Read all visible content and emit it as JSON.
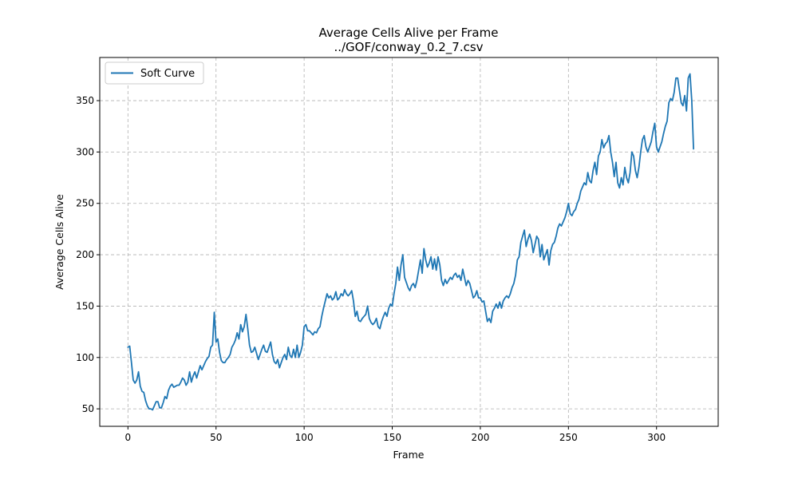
{
  "chart_data": {
    "type": "line",
    "title": "Average Cells Alive per Frame",
    "subtitle": "../GOF/conway_0.2_7.csv",
    "xlabel": "Frame",
    "ylabel": "Average Cells Alive",
    "xlim": [
      -16,
      335
    ],
    "ylim": [
      33,
      392
    ],
    "xticks": [
      0,
      50,
      100,
      150,
      200,
      250,
      300
    ],
    "yticks": [
      50,
      100,
      150,
      200,
      250,
      300,
      350
    ],
    "grid": true,
    "legend_position": "top-left",
    "series": [
      {
        "name": "Soft Curve",
        "color": "#1f77b4",
        "points": [
          [
            0,
            110
          ],
          [
            1,
            111
          ],
          [
            2,
            95
          ],
          [
            3,
            78
          ],
          [
            4,
            75
          ],
          [
            5,
            78
          ],
          [
            6,
            86
          ],
          [
            7,
            72
          ],
          [
            8,
            67
          ],
          [
            9,
            66
          ],
          [
            10,
            58
          ],
          [
            11,
            53
          ],
          [
            12,
            50
          ],
          [
            13,
            50
          ],
          [
            14,
            49
          ],
          [
            15,
            53
          ],
          [
            16,
            57
          ],
          [
            17,
            57
          ],
          [
            18,
            51
          ],
          [
            19,
            51
          ],
          [
            20,
            56
          ],
          [
            21,
            62
          ],
          [
            22,
            60
          ],
          [
            23,
            68
          ],
          [
            24,
            72
          ],
          [
            25,
            74
          ],
          [
            26,
            71
          ],
          [
            27,
            72
          ],
          [
            28,
            73
          ],
          [
            29,
            73
          ],
          [
            30,
            76
          ],
          [
            31,
            80
          ],
          [
            32,
            78
          ],
          [
            33,
            73
          ],
          [
            34,
            76
          ],
          [
            35,
            86
          ],
          [
            36,
            76
          ],
          [
            37,
            82
          ],
          [
            38,
            86
          ],
          [
            39,
            80
          ],
          [
            40,
            86
          ],
          [
            41,
            92
          ],
          [
            42,
            88
          ],
          [
            43,
            92
          ],
          [
            44,
            96
          ],
          [
            45,
            99
          ],
          [
            46,
            101
          ],
          [
            47,
            110
          ],
          [
            48,
            112
          ],
          [
            49,
            144
          ],
          [
            50,
            115
          ],
          [
            51,
            118
          ],
          [
            52,
            105
          ],
          [
            53,
            97
          ],
          [
            54,
            95
          ],
          [
            55,
            95
          ],
          [
            56,
            98
          ],
          [
            57,
            100
          ],
          [
            58,
            103
          ],
          [
            59,
            110
          ],
          [
            60,
            113
          ],
          [
            61,
            117
          ],
          [
            62,
            124
          ],
          [
            63,
            118
          ],
          [
            64,
            132
          ],
          [
            65,
            125
          ],
          [
            66,
            130
          ],
          [
            67,
            142
          ],
          [
            68,
            128
          ],
          [
            69,
            112
          ],
          [
            70,
            105
          ],
          [
            71,
            106
          ],
          [
            72,
            110
          ],
          [
            73,
            104
          ],
          [
            74,
            98
          ],
          [
            75,
            103
          ],
          [
            76,
            108
          ],
          [
            77,
            112
          ],
          [
            78,
            106
          ],
          [
            79,
            105
          ],
          [
            80,
            110
          ],
          [
            81,
            115
          ],
          [
            82,
            103
          ],
          [
            83,
            96
          ],
          [
            84,
            94
          ],
          [
            85,
            98
          ],
          [
            86,
            90
          ],
          [
            87,
            95
          ],
          [
            88,
            100
          ],
          [
            89,
            103
          ],
          [
            90,
            98
          ],
          [
            91,
            110
          ],
          [
            92,
            102
          ],
          [
            93,
            100
          ],
          [
            94,
            108
          ],
          [
            95,
            100
          ],
          [
            96,
            112
          ],
          [
            97,
            100
          ],
          [
            98,
            105
          ],
          [
            99,
            112
          ],
          [
            100,
            130
          ],
          [
            101,
            132
          ],
          [
            102,
            126
          ],
          [
            103,
            126
          ],
          [
            104,
            124
          ],
          [
            105,
            122
          ],
          [
            106,
            125
          ],
          [
            107,
            124
          ],
          [
            108,
            128
          ],
          [
            109,
            130
          ],
          [
            110,
            140
          ],
          [
            111,
            148
          ],
          [
            112,
            155
          ],
          [
            113,
            162
          ],
          [
            114,
            158
          ],
          [
            115,
            160
          ],
          [
            116,
            156
          ],
          [
            117,
            158
          ],
          [
            118,
            164
          ],
          [
            119,
            156
          ],
          [
            120,
            158
          ],
          [
            121,
            162
          ],
          [
            122,
            160
          ],
          [
            123,
            166
          ],
          [
            124,
            162
          ],
          [
            125,
            160
          ],
          [
            126,
            162
          ],
          [
            127,
            165
          ],
          [
            128,
            155
          ],
          [
            129,
            140
          ],
          [
            130,
            145
          ],
          [
            131,
            136
          ],
          [
            132,
            135
          ],
          [
            133,
            138
          ],
          [
            134,
            140
          ],
          [
            135,
            142
          ],
          [
            136,
            150
          ],
          [
            137,
            138
          ],
          [
            138,
            134
          ],
          [
            139,
            132
          ],
          [
            140,
            134
          ],
          [
            141,
            138
          ],
          [
            142,
            130
          ],
          [
            143,
            128
          ],
          [
            144,
            135
          ],
          [
            145,
            140
          ],
          [
            146,
            144
          ],
          [
            147,
            140
          ],
          [
            148,
            148
          ],
          [
            149,
            152
          ],
          [
            150,
            150
          ],
          [
            151,
            162
          ],
          [
            152,
            172
          ],
          [
            153,
            188
          ],
          [
            154,
            175
          ],
          [
            155,
            190
          ],
          [
            156,
            200
          ],
          [
            157,
            178
          ],
          [
            158,
            173
          ],
          [
            159,
            168
          ],
          [
            160,
            165
          ],
          [
            161,
            170
          ],
          [
            162,
            172
          ],
          [
            163,
            168
          ],
          [
            164,
            175
          ],
          [
            165,
            185
          ],
          [
            166,
            195
          ],
          [
            167,
            182
          ],
          [
            168,
            206
          ],
          [
            169,
            195
          ],
          [
            170,
            188
          ],
          [
            171,
            192
          ],
          [
            172,
            198
          ],
          [
            173,
            186
          ],
          [
            174,
            196
          ],
          [
            175,
            185
          ],
          [
            176,
            198
          ],
          [
            177,
            190
          ],
          [
            178,
            175
          ],
          [
            179,
            170
          ],
          [
            180,
            176
          ],
          [
            181,
            172
          ],
          [
            182,
            175
          ],
          [
            183,
            178
          ],
          [
            184,
            176
          ],
          [
            185,
            180
          ],
          [
            186,
            182
          ],
          [
            187,
            178
          ],
          [
            188,
            180
          ],
          [
            189,
            175
          ],
          [
            190,
            186
          ],
          [
            191,
            178
          ],
          [
            192,
            170
          ],
          [
            193,
            175
          ],
          [
            194,
            172
          ],
          [
            195,
            165
          ],
          [
            196,
            158
          ],
          [
            197,
            160
          ],
          [
            198,
            165
          ],
          [
            199,
            158
          ],
          [
            200,
            158
          ],
          [
            201,
            154
          ],
          [
            202,
            155
          ],
          [
            203,
            145
          ],
          [
            204,
            135
          ],
          [
            205,
            138
          ],
          [
            206,
            134
          ],
          [
            207,
            145
          ],
          [
            208,
            148
          ],
          [
            209,
            152
          ],
          [
            210,
            148
          ],
          [
            211,
            154
          ],
          [
            212,
            148
          ],
          [
            213,
            155
          ],
          [
            214,
            158
          ],
          [
            215,
            160
          ],
          [
            216,
            158
          ],
          [
            217,
            162
          ],
          [
            218,
            168
          ],
          [
            219,
            172
          ],
          [
            220,
            180
          ],
          [
            221,
            195
          ],
          [
            222,
            198
          ],
          [
            223,
            212
          ],
          [
            224,
            218
          ],
          [
            225,
            224
          ],
          [
            226,
            208
          ],
          [
            227,
            215
          ],
          [
            228,
            220
          ],
          [
            229,
            214
          ],
          [
            230,
            202
          ],
          [
            231,
            210
          ],
          [
            232,
            218
          ],
          [
            233,
            215
          ],
          [
            234,
            198
          ],
          [
            235,
            210
          ],
          [
            236,
            195
          ],
          [
            237,
            200
          ],
          [
            238,
            205
          ],
          [
            239,
            190
          ],
          [
            240,
            204
          ],
          [
            241,
            210
          ],
          [
            242,
            212
          ],
          [
            243,
            218
          ],
          [
            244,
            226
          ],
          [
            245,
            230
          ],
          [
            246,
            228
          ],
          [
            247,
            232
          ],
          [
            248,
            236
          ],
          [
            249,
            242
          ],
          [
            250,
            250
          ],
          [
            251,
            240
          ],
          [
            252,
            238
          ],
          [
            253,
            242
          ],
          [
            254,
            244
          ],
          [
            255,
            250
          ],
          [
            256,
            254
          ],
          [
            257,
            262
          ],
          [
            258,
            266
          ],
          [
            259,
            270
          ],
          [
            260,
            268
          ],
          [
            261,
            280
          ],
          [
            262,
            272
          ],
          [
            263,
            270
          ],
          [
            264,
            282
          ],
          [
            265,
            290
          ],
          [
            266,
            278
          ],
          [
            267,
            296
          ],
          [
            268,
            300
          ],
          [
            269,
            312
          ],
          [
            270,
            304
          ],
          [
            271,
            308
          ],
          [
            272,
            310
          ],
          [
            273,
            316
          ],
          [
            274,
            300
          ],
          [
            275,
            290
          ],
          [
            276,
            276
          ],
          [
            277,
            290
          ],
          [
            278,
            270
          ],
          [
            279,
            265
          ],
          [
            280,
            275
          ],
          [
            281,
            268
          ],
          [
            282,
            285
          ],
          [
            283,
            275
          ],
          [
            284,
            270
          ],
          [
            285,
            280
          ],
          [
            286,
            300
          ],
          [
            287,
            296
          ],
          [
            288,
            282
          ],
          [
            289,
            275
          ],
          [
            290,
            285
          ],
          [
            291,
            300
          ],
          [
            292,
            312
          ],
          [
            293,
            316
          ],
          [
            294,
            305
          ],
          [
            295,
            300
          ],
          [
            296,
            305
          ],
          [
            297,
            310
          ],
          [
            298,
            320
          ],
          [
            299,
            328
          ],
          [
            300,
            305
          ],
          [
            301,
            300
          ],
          [
            302,
            305
          ],
          [
            303,
            310
          ],
          [
            304,
            318
          ],
          [
            305,
            325
          ],
          [
            306,
            330
          ],
          [
            307,
            348
          ],
          [
            308,
            352
          ],
          [
            309,
            350
          ],
          [
            310,
            358
          ],
          [
            311,
            372
          ],
          [
            312,
            372
          ],
          [
            313,
            360
          ],
          [
            314,
            348
          ],
          [
            315,
            345
          ],
          [
            316,
            355
          ],
          [
            317,
            340
          ],
          [
            318,
            372
          ],
          [
            319,
            376
          ],
          [
            320,
            350
          ],
          [
            321,
            303
          ]
        ]
      }
    ]
  }
}
